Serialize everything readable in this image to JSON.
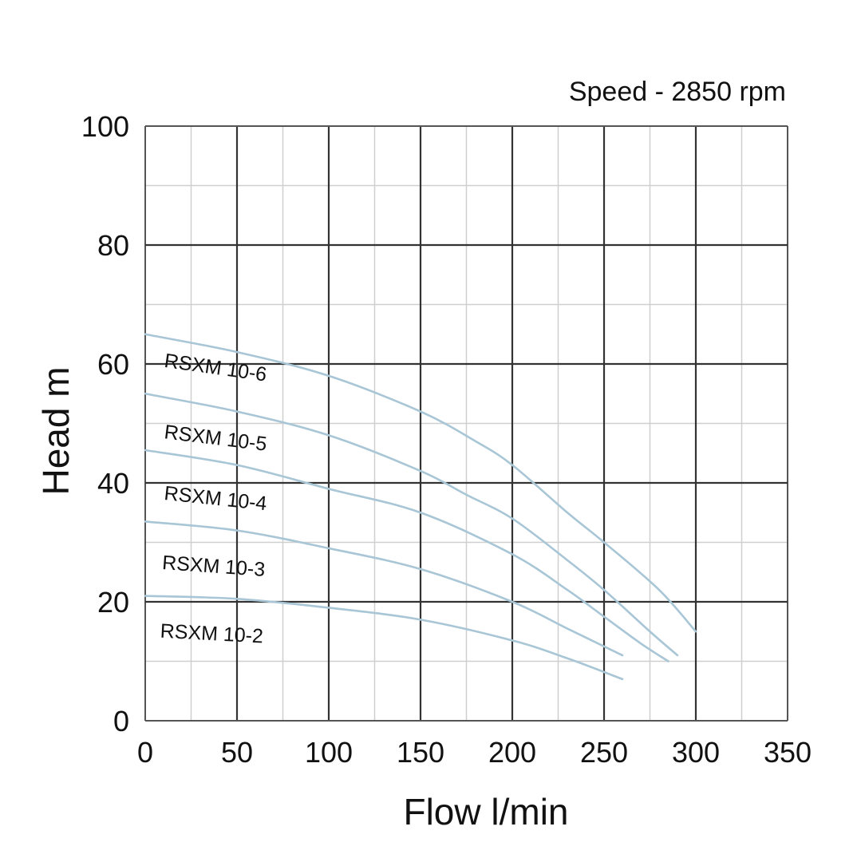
{
  "chart_data": {
    "type": "line",
    "title": "",
    "subtitle": "Speed - 2850 rpm",
    "xlabel": "Flow l/min",
    "ylabel": "Head m",
    "xlim": [
      0,
      350
    ],
    "ylim": [
      0,
      100
    ],
    "x_ticks": [
      0,
      50,
      100,
      150,
      200,
      250,
      300,
      350
    ],
    "y_ticks": [
      0,
      20,
      40,
      60,
      80,
      100
    ],
    "x_tick_labels": [
      "0",
      "50",
      "100",
      "150",
      "200",
      "250",
      "300",
      "350"
    ],
    "y_tick_labels": [
      "0",
      "20",
      "40",
      "60",
      "80",
      "100"
    ],
    "grid": true,
    "colors": {
      "curve": "#a8c6d6",
      "grid_major": "#333333",
      "grid_minor": "#cfcfcf",
      "text": "#111111"
    },
    "series": [
      {
        "name": "RSXM 10-6",
        "x": [
          0,
          50,
          100,
          150,
          180,
          200,
          230,
          250,
          280,
          300
        ],
        "y": [
          65,
          62,
          58,
          52,
          47,
          43,
          35,
          30,
          22,
          15
        ]
      },
      {
        "name": "RSXM 10-5",
        "x": [
          0,
          50,
          100,
          150,
          175,
          200,
          230,
          250,
          275,
          290
        ],
        "y": [
          55,
          52,
          48,
          42,
          38,
          34,
          27,
          22,
          15,
          11
        ]
      },
      {
        "name": "RSXM 10-4",
        "x": [
          0,
          50,
          100,
          150,
          200,
          230,
          250,
          270,
          285
        ],
        "y": [
          45.5,
          43,
          39,
          35,
          28,
          22,
          17.5,
          13,
          10
        ]
      },
      {
        "name": "RSXM 10-3",
        "x": [
          0,
          50,
          100,
          150,
          200,
          230,
          260
        ],
        "y": [
          33.5,
          32,
          29,
          25.5,
          20,
          15.5,
          11
        ]
      },
      {
        "name": "RSXM 10-2",
        "x": [
          0,
          50,
          100,
          150,
          200,
          230,
          260
        ],
        "y": [
          21,
          20.5,
          19,
          17,
          13.5,
          10.5,
          7
        ]
      }
    ]
  }
}
